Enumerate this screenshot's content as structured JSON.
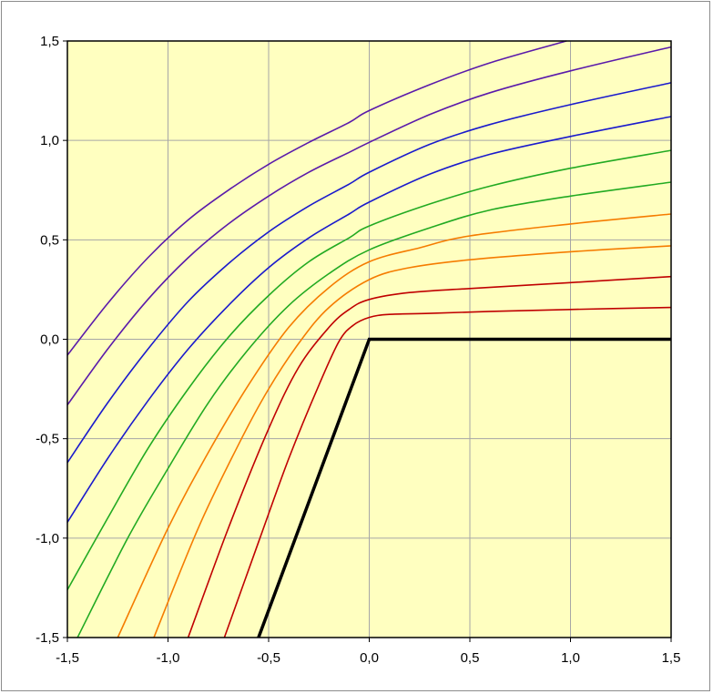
{
  "chart_data": {
    "type": "line",
    "title": "",
    "xlabel": "",
    "ylabel": "",
    "xlim": [
      -1.5,
      1.5
    ],
    "ylim": [
      -1.5,
      1.5
    ],
    "x_ticks": [
      "-1,5",
      "-1,0",
      "-0,5",
      "0,0",
      "0,5",
      "1,0",
      "1,5"
    ],
    "y_ticks": [
      "-1,5",
      "-1,0",
      "-0,5",
      "0,0",
      "0,5",
      "1,0",
      "1,5"
    ],
    "grid": true,
    "legend": "none",
    "colors": {
      "plot_bg": "#ffffc0",
      "grid": "#a6a6a6",
      "frame": "#000000"
    },
    "boundary": {
      "color": "#000000",
      "points": [
        [
          -0.55,
          -1.5
        ],
        [
          0.0,
          0.0
        ],
        [
          1.5,
          0.0
        ]
      ]
    },
    "series": [
      {
        "color": "#c00000",
        "points": [
          [
            -0.72,
            -1.5
          ],
          [
            -0.55,
            -1.02
          ],
          [
            -0.4,
            -0.6
          ],
          [
            -0.25,
            -0.23
          ],
          [
            -0.15,
            -0.01
          ],
          [
            -0.08,
            0.07
          ],
          [
            0.0,
            0.11
          ],
          [
            0.1,
            0.125
          ],
          [
            0.3,
            0.13
          ],
          [
            0.6,
            0.14
          ],
          [
            1.0,
            0.15
          ],
          [
            1.5,
            0.16
          ]
        ]
      },
      {
        "color": "#c00000",
        "points": [
          [
            -0.9,
            -1.5
          ],
          [
            -0.7,
            -0.95
          ],
          [
            -0.5,
            -0.45
          ],
          [
            -0.35,
            -0.14
          ],
          [
            -0.2,
            0.06
          ],
          [
            -0.1,
            0.15
          ],
          [
            0.0,
            0.2
          ],
          [
            0.2,
            0.235
          ],
          [
            0.5,
            0.255
          ],
          [
            1.0,
            0.285
          ],
          [
            1.5,
            0.315
          ]
        ]
      },
      {
        "color": "#f57c00",
        "points": [
          [
            -1.07,
            -1.5
          ],
          [
            -0.85,
            -0.95
          ],
          [
            -0.65,
            -0.53
          ],
          [
            -0.5,
            -0.25
          ],
          [
            -0.35,
            -0.02
          ],
          [
            -0.2,
            0.16
          ],
          [
            0.0,
            0.3
          ],
          [
            0.2,
            0.36
          ],
          [
            0.5,
            0.4
          ],
          [
            1.0,
            0.44
          ],
          [
            1.5,
            0.47
          ]
        ]
      },
      {
        "color": "#f57c00",
        "points": [
          [
            -1.25,
            -1.5
          ],
          [
            -1.0,
            -0.95
          ],
          [
            -0.8,
            -0.57
          ],
          [
            -0.6,
            -0.23
          ],
          [
            -0.4,
            0.06
          ],
          [
            -0.2,
            0.26
          ],
          [
            0.0,
            0.39
          ],
          [
            0.25,
            0.46
          ],
          [
            0.5,
            0.52
          ],
          [
            1.0,
            0.58
          ],
          [
            1.5,
            0.63
          ]
        ]
      },
      {
        "color": "#22aa22",
        "points": [
          [
            -1.45,
            -1.5
          ],
          [
            -1.2,
            -1.0
          ],
          [
            -1.0,
            -0.65
          ],
          [
            -0.8,
            -0.32
          ],
          [
            -0.6,
            -0.05
          ],
          [
            -0.4,
            0.17
          ],
          [
            -0.2,
            0.33
          ],
          [
            0.0,
            0.45
          ],
          [
            0.3,
            0.56
          ],
          [
            0.6,
            0.65
          ],
          [
            1.0,
            0.72
          ],
          [
            1.5,
            0.79
          ]
        ]
      },
      {
        "color": "#22aa22",
        "points": [
          [
            -1.5,
            -1.26
          ],
          [
            -1.3,
            -0.9
          ],
          [
            -1.1,
            -0.55
          ],
          [
            -0.9,
            -0.25
          ],
          [
            -0.7,
            0.01
          ],
          [
            -0.5,
            0.22
          ],
          [
            -0.3,
            0.39
          ],
          [
            -0.1,
            0.51
          ],
          [
            0.0,
            0.57
          ],
          [
            0.3,
            0.68
          ],
          [
            0.6,
            0.77
          ],
          [
            1.0,
            0.86
          ],
          [
            1.5,
            0.95
          ]
        ]
      },
      {
        "color": "#1a1acc",
        "points": [
          [
            -1.5,
            -0.92
          ],
          [
            -1.3,
            -0.6
          ],
          [
            -1.1,
            -0.31
          ],
          [
            -0.9,
            -0.05
          ],
          [
            -0.7,
            0.17
          ],
          [
            -0.5,
            0.36
          ],
          [
            -0.3,
            0.51
          ],
          [
            -0.1,
            0.63
          ],
          [
            0.0,
            0.69
          ],
          [
            0.3,
            0.83
          ],
          [
            0.6,
            0.93
          ],
          [
            1.0,
            1.02
          ],
          [
            1.5,
            1.12
          ]
        ]
      },
      {
        "color": "#1a1acc",
        "points": [
          [
            -1.5,
            -0.62
          ],
          [
            -1.3,
            -0.32
          ],
          [
            -1.1,
            -0.05
          ],
          [
            -0.9,
            0.19
          ],
          [
            -0.7,
            0.38
          ],
          [
            -0.5,
            0.54
          ],
          [
            -0.3,
            0.67
          ],
          [
            -0.1,
            0.78
          ],
          [
            0.0,
            0.84
          ],
          [
            0.3,
            0.98
          ],
          [
            0.6,
            1.08
          ],
          [
            1.0,
            1.18
          ],
          [
            1.5,
            1.29
          ]
        ]
      },
      {
        "color": "#5a1aaa",
        "points": [
          [
            -1.5,
            -0.33
          ],
          [
            -1.3,
            -0.05
          ],
          [
            -1.1,
            0.2
          ],
          [
            -0.9,
            0.41
          ],
          [
            -0.7,
            0.58
          ],
          [
            -0.5,
            0.72
          ],
          [
            -0.3,
            0.84
          ],
          [
            -0.1,
            0.94
          ],
          [
            0.0,
            0.99
          ],
          [
            0.3,
            1.13
          ],
          [
            0.6,
            1.24
          ],
          [
            1.0,
            1.35
          ],
          [
            1.5,
            1.47
          ]
        ]
      },
      {
        "color": "#5a1aaa",
        "points": [
          [
            -1.5,
            -0.08
          ],
          [
            -1.3,
            0.18
          ],
          [
            -1.1,
            0.41
          ],
          [
            -0.9,
            0.6
          ],
          [
            -0.7,
            0.75
          ],
          [
            -0.5,
            0.88
          ],
          [
            -0.3,
            0.99
          ],
          [
            -0.1,
            1.09
          ],
          [
            0.0,
            1.15
          ],
          [
            0.3,
            1.28
          ],
          [
            0.6,
            1.39
          ],
          [
            0.98,
            1.5
          ]
        ]
      }
    ]
  }
}
